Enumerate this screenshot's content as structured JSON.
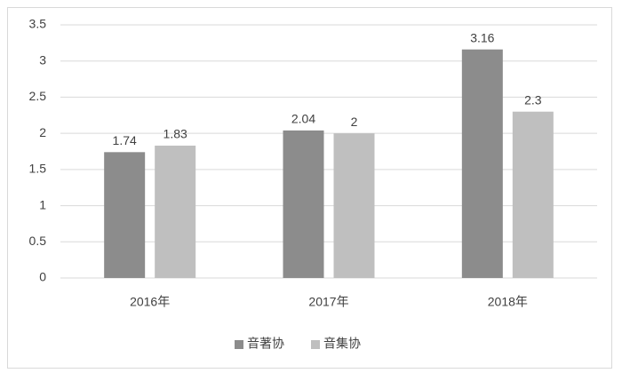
{
  "chart_data": {
    "type": "bar",
    "categories": [
      "2016年",
      "2017年",
      "2018年"
    ],
    "series": [
      {
        "name": "音著协",
        "color": "#8c8c8c",
        "values": [
          1.74,
          2.04,
          3.16
        ]
      },
      {
        "name": "音集协",
        "color": "#bfbfbf",
        "values": [
          1.83,
          2,
          2.3
        ]
      }
    ],
    "ylim": [
      0,
      3.5
    ],
    "yticks": [
      0,
      0.5,
      1,
      1.5,
      2,
      2.5,
      3,
      3.5
    ],
    "grid": true,
    "legend": "bottom"
  }
}
